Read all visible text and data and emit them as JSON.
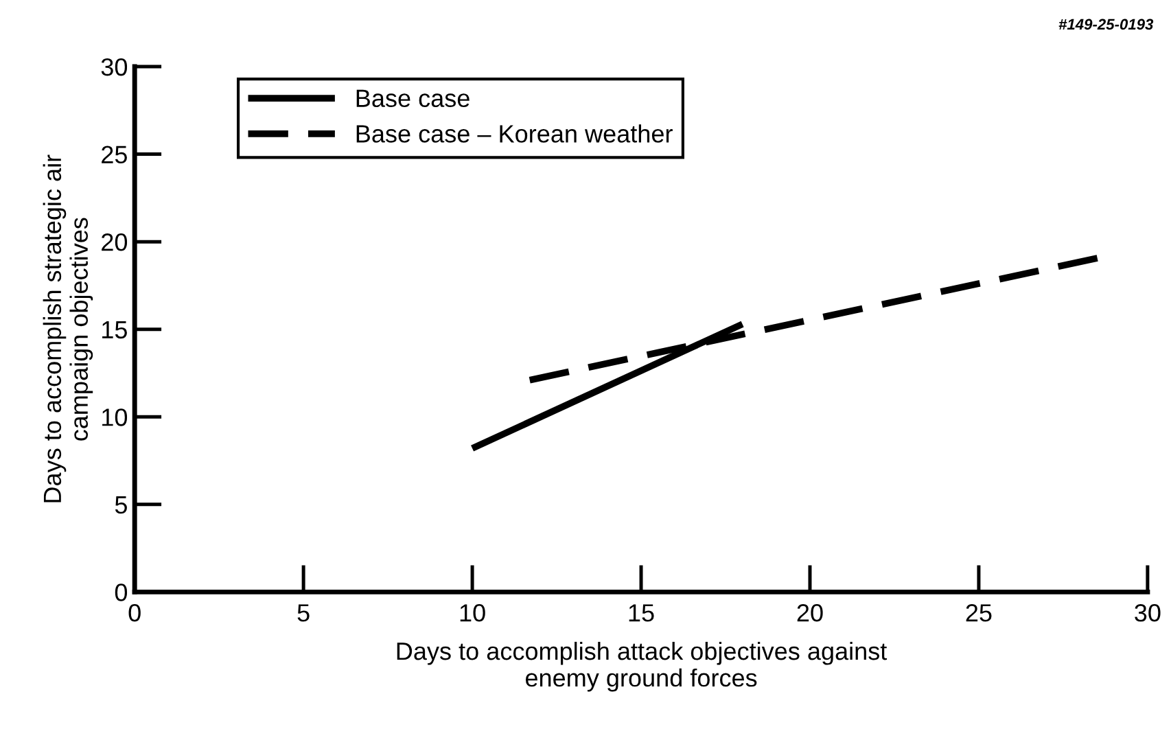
{
  "chart_data": {
    "type": "line",
    "xlabel": "Days to accomplish attack objectives against\nenemy ground forces",
    "ylabel": "Days to accomplish strategic air\ncampaign objectives",
    "annotations": [
      "#149-25-0193"
    ],
    "series": [
      {
        "name": "Base case",
        "color": "#000000",
        "line_style": "solid",
        "x": [
          10,
          18
        ],
        "values": [
          8.2,
          15.3
        ]
      },
      {
        "name": "Base case – Korean weather",
        "color": "#000000",
        "line_style": "dashed",
        "x": [
          11.7,
          28.6
        ],
        "values": [
          12.1,
          19.1
        ]
      }
    ],
    "xlim": [
      0,
      30
    ],
    "ylim": [
      0,
      30
    ],
    "xticks": [
      0,
      5,
      10,
      15,
      20,
      25,
      30
    ],
    "yticks": [
      0,
      5,
      10,
      15,
      20,
      25,
      30
    ],
    "grid": false,
    "legend": "top left",
    "marker": "none"
  }
}
